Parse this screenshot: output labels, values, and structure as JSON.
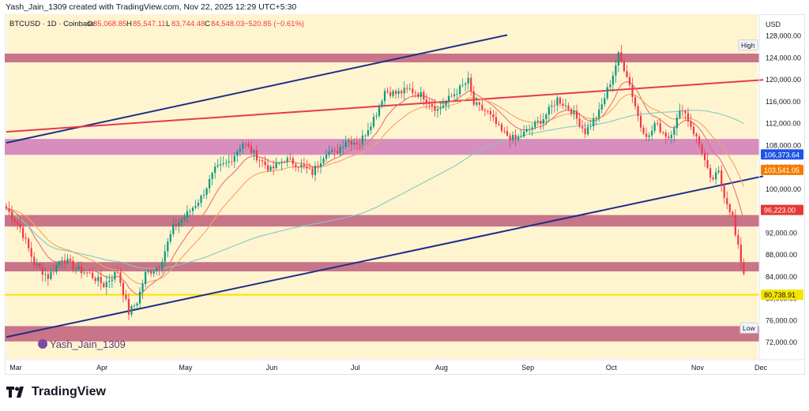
{
  "header": {
    "attribution": "Yash_Jain_1309 created with TradingView.com, Nov 22, 2025 12:29 UTC+5:30"
  },
  "symbol": {
    "name": "BTCUSD · 1D · Coinbase",
    "open_label": "O",
    "open": "85,068.85",
    "high_label": "H",
    "high": "85,547.11",
    "low_label": "L",
    "low": "83,744.48",
    "close_label": "C",
    "close": "84,548.03",
    "change": "−520.85 (−0.61%)",
    "change_color": "#f23645"
  },
  "chart_data": {
    "type": "candlestick",
    "currency_label": "USD",
    "price_axis": {
      "range": [
        69000,
        132000
      ],
      "ticks": [
        "128,000.00",
        "124,000.00",
        "120,000.00",
        "116,000.00",
        "112,000.00",
        "108,000.00",
        "104,000.00",
        "100,000.00",
        "96,000.00",
        "92,000.00",
        "88,000.00",
        "84,000.00",
        "80,000.00",
        "76,000.00",
        "72,000.00"
      ]
    },
    "time_axis": {
      "labels": [
        "Mar",
        "Apr",
        "May",
        "Jun",
        "Jul",
        "Aug",
        "Sep",
        "Oct",
        "Nov",
        "Dec"
      ]
    },
    "price_labels": [
      {
        "text": "106,373.64",
        "price": 106373.64,
        "color": "#1e53e5"
      },
      {
        "text": "103,541.05",
        "price": 103541.05,
        "color": "#f57c00"
      },
      {
        "text": "96,223.00",
        "price": 96223.0,
        "color": "#e53935"
      },
      {
        "text": "80,738.91",
        "price": 80738.91,
        "color": "#f5e400"
      }
    ],
    "badges": {
      "high": "High",
      "low": "Low"
    },
    "zones": [
      {
        "from": 123200,
        "to": 124800,
        "color": "#b54a72"
      },
      {
        "from": 106300,
        "to": 109200,
        "color": "#c96bb8"
      },
      {
        "from": 93200,
        "to": 95300,
        "color": "#b54a72"
      },
      {
        "from": 85000,
        "to": 86700,
        "color": "#b54a72"
      },
      {
        "from": 72200,
        "to": 75000,
        "color": "#b54a72"
      }
    ],
    "highlight_band": {
      "from_day": 0,
      "to_day": 270,
      "color": "#fff4d0"
    },
    "support_line_price": 80738.91,
    "trendlines": [
      {
        "name": "upper-channel",
        "points": [
          [
            0,
            108500
          ],
          [
            180,
            128200
          ]
        ],
        "color": "#1f2e8a"
      },
      {
        "name": "lower-channel",
        "points": [
          [
            0,
            73000
          ],
          [
            272,
            102400
          ]
        ],
        "color": "#1f2e8a"
      },
      {
        "name": "red-trend",
        "points": [
          [
            0,
            110500
          ],
          [
            272,
            120000
          ]
        ],
        "color": "#e53950"
      }
    ],
    "candle_anchors": [
      [
        0,
        96500
      ],
      [
        5,
        93000
      ],
      [
        10,
        86500
      ],
      [
        15,
        84000
      ],
      [
        20,
        87500
      ],
      [
        25,
        85500
      ],
      [
        30,
        84500
      ],
      [
        35,
        82500
      ],
      [
        40,
        85000
      ],
      [
        44,
        77500
      ],
      [
        47,
        79500
      ],
      [
        50,
        84500
      ],
      [
        55,
        86000
      ],
      [
        60,
        93000
      ],
      [
        65,
        95500
      ],
      [
        70,
        98500
      ],
      [
        75,
        103500
      ],
      [
        80,
        105000
      ],
      [
        85,
        108500
      ],
      [
        90,
        106000
      ],
      [
        95,
        103500
      ],
      [
        100,
        105500
      ],
      [
        105,
        104500
      ],
      [
        110,
        103000
      ],
      [
        115,
        107000
      ],
      [
        118,
        106500
      ],
      [
        122,
        109000
      ],
      [
        127,
        108500
      ],
      [
        133,
        114000
      ],
      [
        136,
        118000
      ],
      [
        140,
        117500
      ],
      [
        145,
        118200
      ],
      [
        150,
        117000
      ],
      [
        155,
        114500
      ],
      [
        160,
        117000
      ],
      [
        166,
        119800
      ],
      [
        168,
        115500
      ],
      [
        173,
        114000
      ],
      [
        178,
        110500
      ],
      [
        183,
        109000
      ],
      [
        188,
        111000
      ],
      [
        193,
        113000
      ],
      [
        198,
        116500
      ],
      [
        203,
        114500
      ],
      [
        208,
        110500
      ],
      [
        213,
        114000
      ],
      [
        218,
        121000
      ],
      [
        220,
        124500
      ],
      [
        223,
        121000
      ],
      [
        228,
        111500
      ],
      [
        231,
        109500
      ],
      [
        233,
        112000
      ],
      [
        238,
        109500
      ],
      [
        243,
        115000
      ],
      [
        247,
        110500
      ],
      [
        250,
        107000
      ],
      [
        253,
        101500
      ],
      [
        256,
        103000
      ],
      [
        258,
        99000
      ],
      [
        261,
        95000
      ],
      [
        262,
        91500
      ],
      [
        264,
        87000
      ],
      [
        265,
        84548
      ]
    ],
    "bars_total": 270,
    "ma_colors": {
      "ema_fast": "#e57373",
      "ema_mid": "#f4a460",
      "ema_slow": "#80cbc4"
    }
  },
  "footer": {
    "brand": "TradingView",
    "watermark": "Yash_Jain_1309"
  }
}
